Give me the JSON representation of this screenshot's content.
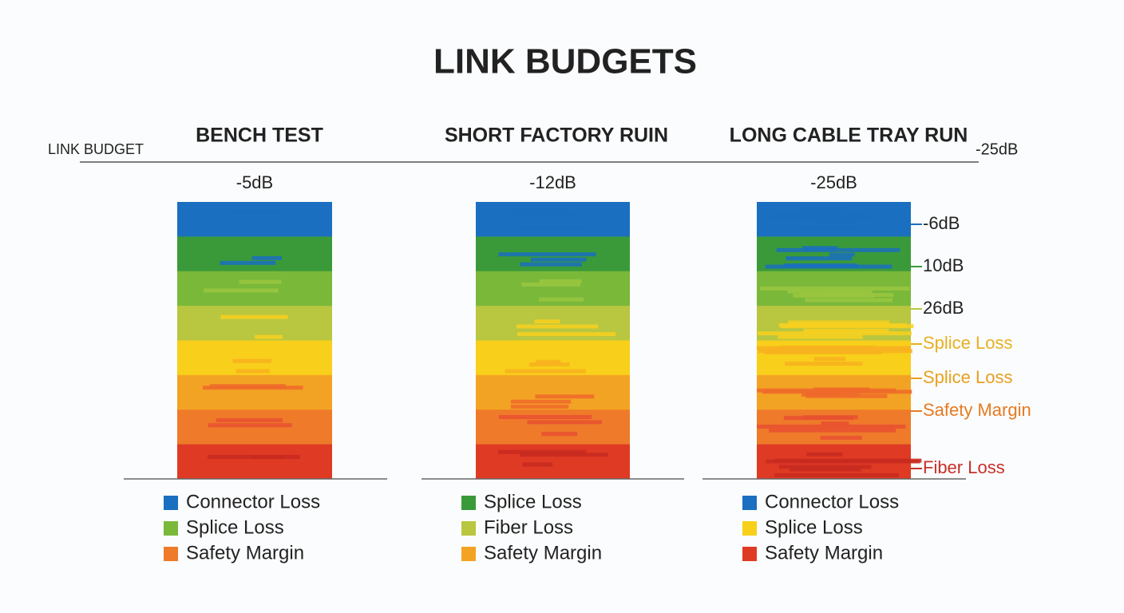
{
  "header": {
    "title": "LINK BUDGETS",
    "left_label": "LINK BUDGET",
    "right_label": "-25dB"
  },
  "panels": [
    {
      "title": "BENCH TEST",
      "value": "-5dB",
      "legend": [
        {
          "name": "Connector Loss",
          "color": "#1a6fc0"
        },
        {
          "name": "Splice Loss",
          "color": "#7ab83a"
        },
        {
          "name": "Safety Margin",
          "color": "#ee7a2a"
        }
      ]
    },
    {
      "title": "SHORT FACTORY RUIN",
      "value": "-12dB",
      "legend": [
        {
          "name": "Splice Loss",
          "color": "#3a9a3a"
        },
        {
          "name": "Fiber Loss",
          "color": "#b8c640"
        },
        {
          "name": "Safety Margin",
          "color": "#f3a324"
        }
      ]
    },
    {
      "title": "LONG CABLE TRAY RUN",
      "value": "-25dB",
      "legend": [
        {
          "name": "Connector Loss",
          "color": "#1a6fc0"
        },
        {
          "name": "Splice Loss",
          "color": "#f8cf1a"
        },
        {
          "name": "Safety Margin",
          "color": "#df3a24"
        }
      ],
      "side_labels": [
        {
          "text": "-6dB",
          "color": "#222222"
        },
        {
          "text": "10dB",
          "color": "#222222"
        },
        {
          "text": "26dB",
          "color": "#222222"
        },
        {
          "text": "Splice Loss",
          "color": "#e8b020"
        },
        {
          "text": "Splice Loss",
          "color": "#e8a020"
        },
        {
          "text": "Safety Margin",
          "color": "#e87a20"
        },
        {
          "text": "Fiber Loss",
          "color": "#c8302a"
        }
      ]
    }
  ]
}
